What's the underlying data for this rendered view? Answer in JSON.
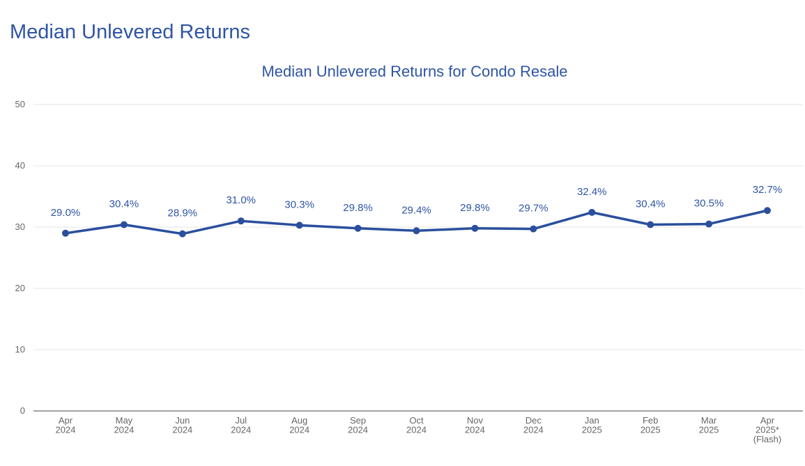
{
  "page": {
    "heading": "Median Unlevered Returns"
  },
  "colors": {
    "series": "#2a4f9d",
    "text": "#2f55a4",
    "grid": "#e6e6e6",
    "axis_text": "#666666"
  },
  "chart_data": {
    "type": "line",
    "title": "Median Unlevered Returns for Condo Resale",
    "xlabel": "",
    "ylabel": "",
    "ylim": [
      0,
      50
    ],
    "yticks": [
      "0",
      "10",
      "20",
      "30",
      "40",
      "50"
    ],
    "grid": true,
    "categories": [
      [
        "Apr",
        "2024"
      ],
      [
        "May",
        "2024"
      ],
      [
        "Jun",
        "2024"
      ],
      [
        "Jul",
        "2024"
      ],
      [
        "Aug",
        "2024"
      ],
      [
        "Sep",
        "2024"
      ],
      [
        "Oct",
        "2024"
      ],
      [
        "Nov",
        "2024"
      ],
      [
        "Dec",
        "2024"
      ],
      [
        "Jan",
        "2025"
      ],
      [
        "Feb",
        "2025"
      ],
      [
        "Mar",
        "2025"
      ],
      [
        "Apr",
        "2025*",
        "(Flash)"
      ]
    ],
    "series": [
      {
        "values": [
          29.0,
          30.4,
          28.9,
          31.0,
          30.3,
          29.8,
          29.4,
          29.8,
          29.7,
          32.4,
          30.4,
          30.5,
          32.7
        ],
        "labels": [
          "29.0%",
          "30.4%",
          "28.9%",
          "31.0%",
          "30.3%",
          "29.8%",
          "29.4%",
          "29.8%",
          "29.7%",
          "32.4%",
          "30.4%",
          "30.5%",
          "32.7%"
        ]
      }
    ]
  }
}
